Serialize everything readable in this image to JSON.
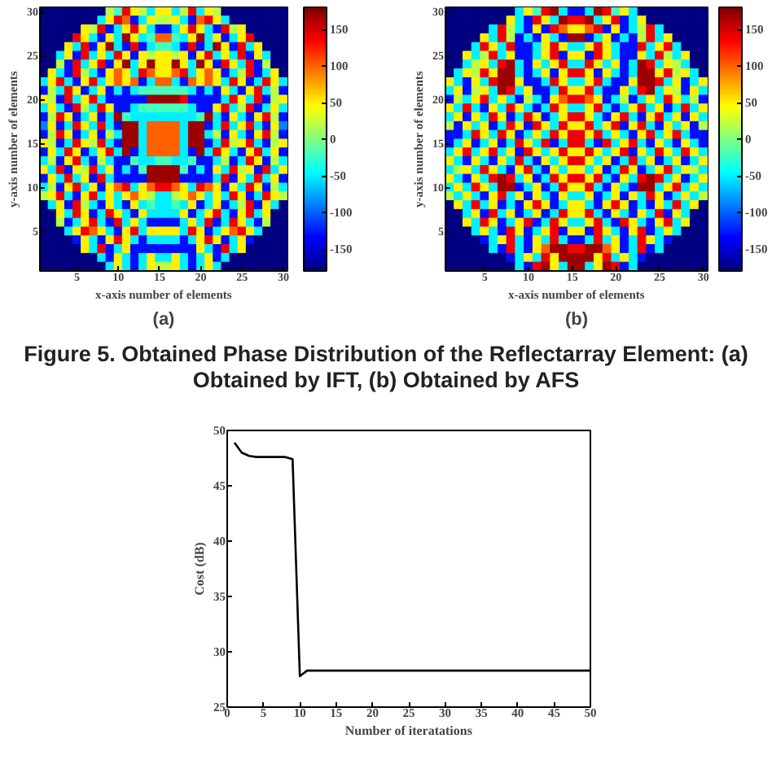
{
  "chart_data": [
    {
      "type": "heatmap",
      "title": "(a)",
      "xlabel": "x-axis number of elements",
      "ylabel": "y-axis number of elements",
      "annotations": [
        "Figure 5. Obtained Phase Distribution of the Reflectarray Element: (a) Obtained by IFT, (b) Obtained by AFS"
      ],
      "categories": [
        null,
        null,
        null,
        null,
        "5",
        null,
        null,
        null,
        null,
        "10",
        null,
        null,
        null,
        null,
        "15",
        null,
        null,
        null,
        null,
        "20",
        null,
        null,
        null,
        null,
        "25",
        null,
        null,
        null,
        null,
        "30"
      ],
      "y_categories": [
        "30",
        null,
        null,
        null,
        null,
        "25",
        null,
        null,
        null,
        null,
        "20",
        null,
        null,
        null,
        null,
        "15",
        null,
        null,
        null,
        null,
        "10",
        null,
        null,
        null,
        null,
        "5",
        null,
        null,
        null,
        null
      ],
      "clim": [
        -180,
        180
      ],
      "cticks": [
        -150,
        -100,
        -50,
        0,
        50,
        100,
        150
      ],
      "cells": [
        [
          -180,
          -180,
          -180,
          -180,
          -180,
          -180,
          -180,
          -180,
          20,
          -20,
          140,
          50,
          20,
          -50,
          50,
          50,
          -50,
          20,
          140,
          -50,
          50,
          20,
          -180,
          -180,
          -180,
          -180,
          -180,
          -180,
          -180,
          -180
        ],
        [
          -180,
          -180,
          -180,
          -180,
          -180,
          -180,
          -180,
          -50,
          50,
          140,
          100,
          -130,
          -50,
          50,
          20,
          20,
          50,
          -50,
          -130,
          100,
          140,
          50,
          -50,
          -180,
          -180,
          -180,
          -180,
          -180,
          -180,
          -180
        ],
        [
          -180,
          -180,
          -180,
          -180,
          -180,
          50,
          20,
          140,
          -130,
          -50,
          50,
          140,
          50,
          -50,
          -130,
          -130,
          -50,
          50,
          140,
          50,
          -50,
          -130,
          140,
          20,
          50,
          -180,
          -180,
          -180,
          -180,
          -180
        ],
        [
          -180,
          -180,
          -180,
          -180,
          140,
          50,
          -50,
          -130,
          50,
          -50,
          170,
          50,
          -50,
          -20,
          100,
          100,
          -20,
          -50,
          50,
          170,
          -50,
          50,
          -130,
          -50,
          50,
          140,
          -180,
          -180,
          -180,
          -180
        ],
        [
          -180,
          -180,
          -180,
          50,
          -50,
          140,
          -130,
          50,
          170,
          -50,
          -130,
          140,
          -130,
          -50,
          -20,
          -20,
          -50,
          -130,
          140,
          -130,
          -50,
          170,
          50,
          -130,
          140,
          -50,
          50,
          -180,
          -180,
          -180
        ],
        [
          -180,
          -180,
          -50,
          50,
          -130,
          140,
          -50,
          50,
          -50,
          140,
          50,
          -130,
          50,
          20,
          50,
          50,
          20,
          50,
          -130,
          50,
          140,
          -50,
          50,
          -50,
          140,
          -130,
          50,
          -50,
          -180,
          -180
        ],
        [
          -180,
          -180,
          20,
          -130,
          140,
          -50,
          50,
          140,
          -130,
          50,
          170,
          -50,
          50,
          170,
          50,
          50,
          170,
          50,
          -50,
          170,
          50,
          -130,
          140,
          50,
          -50,
          140,
          -130,
          20,
          -180,
          -180
        ],
        [
          -180,
          50,
          -50,
          -130,
          140,
          20,
          -50,
          -130,
          50,
          100,
          50,
          -50,
          140,
          100,
          50,
          50,
          100,
          140,
          -50,
          50,
          100,
          50,
          -130,
          -50,
          20,
          140,
          -130,
          -50,
          50,
          -180
        ],
        [
          -50,
          50,
          140,
          -50,
          -130,
          50,
          140,
          -50,
          50,
          100,
          50,
          100,
          -130,
          -50,
          100,
          100,
          -50,
          -130,
          100,
          50,
          100,
          50,
          -50,
          140,
          50,
          -130,
          -50,
          140,
          50,
          -50
        ],
        [
          -130,
          20,
          -50,
          140,
          50,
          -130,
          -50,
          50,
          -130,
          -50,
          -130,
          -50,
          -20,
          -20,
          -20,
          -20,
          -20,
          -20,
          -50,
          -130,
          -50,
          -130,
          50,
          -50,
          -130,
          50,
          140,
          -50,
          20,
          -130
        ],
        [
          50,
          20,
          -130,
          140,
          -50,
          50,
          140,
          -50,
          -130,
          -130,
          -130,
          -130,
          -130,
          170,
          170,
          170,
          170,
          140,
          -130,
          -130,
          -130,
          -130,
          -50,
          140,
          50,
          -50,
          140,
          -130,
          20,
          50
        ],
        [
          -50,
          50,
          -50,
          -130,
          140,
          20,
          -50,
          140,
          50,
          -130,
          -130,
          -50,
          -20,
          -20,
          -20,
          -20,
          -20,
          -20,
          -50,
          -130,
          -130,
          50,
          140,
          -50,
          20,
          140,
          -130,
          -50,
          50,
          -50
        ],
        [
          -130,
          20,
          140,
          50,
          -130,
          -50,
          50,
          -130,
          -50,
          170,
          -20,
          -50,
          -50,
          -50,
          -50,
          -50,
          -50,
          -50,
          -50,
          -20,
          170,
          -50,
          -130,
          50,
          -50,
          -130,
          50,
          140,
          20,
          -130
        ],
        [
          -90,
          50,
          -130,
          -50,
          140,
          50,
          -50,
          140,
          -50,
          -130,
          170,
          170,
          -50,
          100,
          100,
          100,
          100,
          -50,
          170,
          170,
          -130,
          -50,
          140,
          -50,
          50,
          140,
          -50,
          -130,
          50,
          -90
        ],
        [
          -130,
          20,
          140,
          50,
          -130,
          -50,
          50,
          -130,
          20,
          -50,
          170,
          170,
          -50,
          100,
          100,
          100,
          100,
          -50,
          170,
          170,
          -50,
          20,
          -130,
          50,
          -50,
          -130,
          50,
          140,
          20,
          -130
        ],
        [
          50,
          20,
          -130,
          -50,
          140,
          50,
          20,
          140,
          -50,
          -130,
          170,
          170,
          -50,
          100,
          100,
          100,
          100,
          -50,
          170,
          170,
          -130,
          -50,
          140,
          20,
          50,
          140,
          -50,
          -130,
          20,
          50
        ],
        [
          -130,
          50,
          -50,
          140,
          50,
          -130,
          -50,
          50,
          140,
          -50,
          170,
          -130,
          -50,
          100,
          100,
          100,
          100,
          -50,
          -130,
          170,
          -50,
          140,
          50,
          -50,
          -130,
          50,
          140,
          -50,
          50,
          -130
        ],
        [
          -50,
          20,
          -130,
          50,
          140,
          -50,
          -130,
          20,
          -50,
          -130,
          -130,
          -20,
          -50,
          -50,
          -20,
          -20,
          -50,
          -50,
          -20,
          -130,
          -130,
          -50,
          20,
          -130,
          -50,
          140,
          50,
          -130,
          20,
          -50
        ],
        [
          50,
          -50,
          140,
          -130,
          50,
          20,
          140,
          -50,
          50,
          -130,
          -50,
          -130,
          -20,
          170,
          170,
          170,
          170,
          -20,
          -130,
          -50,
          -130,
          50,
          -50,
          140,
          20,
          50,
          -130,
          140,
          -50,
          50
        ],
        [
          -130,
          50,
          -50,
          140,
          -50,
          50,
          -130,
          140,
          -50,
          -130,
          -130,
          -130,
          -130,
          170,
          170,
          170,
          170,
          -130,
          -130,
          -130,
          -130,
          -50,
          140,
          -130,
          50,
          -50,
          140,
          -50,
          50,
          -130
        ],
        [
          -50,
          20,
          -130,
          50,
          140,
          -50,
          50,
          -130,
          50,
          100,
          140,
          -50,
          50,
          100,
          140,
          140,
          100,
          50,
          -50,
          140,
          100,
          50,
          -130,
          50,
          -50,
          140,
          50,
          -130,
          20,
          -50
        ],
        [
          20,
          50,
          140,
          -50,
          -130,
          50,
          140,
          -50,
          50,
          -50,
          50,
          100,
          50,
          20,
          -50,
          -50,
          20,
          50,
          100,
          50,
          -50,
          50,
          -50,
          140,
          50,
          -130,
          -50,
          140,
          50,
          20
        ],
        [
          -180,
          -50,
          50,
          -130,
          140,
          20,
          -50,
          -130,
          50,
          -50,
          -130,
          50,
          -50,
          -20,
          -50,
          -50,
          -20,
          -50,
          50,
          -130,
          -50,
          50,
          -130,
          -50,
          20,
          140,
          -130,
          50,
          -50,
          -180
        ],
        [
          -180,
          -180,
          50,
          -50,
          140,
          50,
          -130,
          -50,
          140,
          50,
          -50,
          -130,
          50,
          -50,
          -50,
          -50,
          -50,
          50,
          -130,
          -50,
          50,
          140,
          -50,
          -130,
          50,
          140,
          -50,
          50,
          -180,
          -180
        ],
        [
          -180,
          -180,
          20,
          -130,
          -50,
          50,
          140,
          -50,
          -130,
          140,
          -50,
          50,
          -50,
          -130,
          -130,
          -130,
          -130,
          -50,
          50,
          -50,
          140,
          -130,
          -50,
          140,
          50,
          -50,
          -130,
          20,
          -180,
          -180
        ],
        [
          -180,
          -180,
          -180,
          -50,
          50,
          140,
          100,
          50,
          -50,
          -130,
          50,
          140,
          -50,
          50,
          50,
          50,
          50,
          -50,
          140,
          50,
          -130,
          -50,
          50,
          100,
          140,
          50,
          -50,
          -180,
          -180,
          -180
        ],
        [
          -180,
          -180,
          -180,
          -180,
          -130,
          50,
          -50,
          -130,
          50,
          140,
          50,
          -50,
          -130,
          -50,
          -50,
          -50,
          -50,
          -130,
          -50,
          50,
          140,
          50,
          -130,
          -50,
          50,
          -130,
          -180,
          -180,
          -180,
          -180
        ],
        [
          -180,
          -180,
          -180,
          -180,
          -180,
          50,
          -50,
          140,
          -130,
          -50,
          50,
          -130,
          -130,
          -130,
          -130,
          -130,
          -130,
          -130,
          -130,
          50,
          -50,
          -130,
          140,
          -50,
          50,
          -180,
          -180,
          -180,
          -180,
          -180
        ],
        [
          -180,
          -180,
          -180,
          -180,
          -180,
          -180,
          -180,
          -50,
          -130,
          50,
          -50,
          -130,
          -50,
          50,
          -50,
          -50,
          50,
          -50,
          -130,
          -50,
          50,
          -130,
          -50,
          -180,
          -180,
          -180,
          -180,
          -180,
          -180,
          -180
        ],
        [
          -180,
          -180,
          -180,
          -180,
          -180,
          -180,
          -180,
          -180,
          -50,
          50,
          -50,
          -130,
          -50,
          50,
          20,
          20,
          50,
          -50,
          -130,
          -50,
          50,
          -50,
          -180,
          -180,
          -180,
          -180,
          -180,
          -180,
          -180,
          -180
        ]
      ]
    },
    {
      "type": "heatmap",
      "title": "(b)",
      "xlabel": "x-axis number of elements",
      "ylabel": "y-axis number of elements",
      "categories": [
        null,
        null,
        null,
        null,
        "5",
        null,
        null,
        null,
        null,
        "10",
        null,
        null,
        null,
        null,
        "15",
        null,
        null,
        null,
        null,
        "20",
        null,
        null,
        null,
        null,
        "25",
        null,
        null,
        null,
        null,
        "30"
      ],
      "y_categories": [
        "30",
        null,
        null,
        null,
        null,
        "25",
        null,
        null,
        null,
        null,
        "20",
        null,
        null,
        null,
        null,
        "15",
        null,
        null,
        null,
        null,
        "10",
        null,
        null,
        null,
        null,
        "5",
        null,
        null,
        null,
        null
      ],
      "clim": [
        -180,
        180
      ],
      "cticks": [
        -150,
        -100,
        -50,
        0,
        50,
        100,
        150
      ],
      "cells": [
        [
          -180,
          -180,
          -180,
          -180,
          -180,
          -180,
          -180,
          -180,
          -50,
          50,
          -20,
          140,
          170,
          -50,
          -130,
          -130,
          -50,
          170,
          140,
          -20,
          50,
          -50,
          -180,
          -180,
          -180,
          -180,
          -180,
          -180,
          -180,
          -180
        ],
        [
          -180,
          -180,
          -180,
          -180,
          -180,
          -180,
          -180,
          50,
          -50,
          -130,
          140,
          50,
          -50,
          170,
          140,
          140,
          170,
          -50,
          50,
          140,
          -130,
          -50,
          50,
          -180,
          -180,
          -180,
          -180,
          -180,
          -180,
          -180
        ],
        [
          -180,
          -180,
          -180,
          -180,
          -180,
          -50,
          140,
          20,
          -50,
          -130,
          50,
          -130,
          140,
          100,
          50,
          50,
          100,
          140,
          -130,
          50,
          -130,
          -50,
          20,
          140,
          -50,
          -180,
          -180,
          -180,
          -180,
          -180
        ],
        [
          -180,
          -180,
          -180,
          -180,
          50,
          -50,
          140,
          20,
          -130,
          -50,
          -130,
          50,
          -50,
          -130,
          170,
          170,
          -130,
          -50,
          50,
          -130,
          -50,
          -130,
          20,
          140,
          -50,
          50,
          -180,
          -180,
          -180,
          -180
        ],
        [
          -180,
          -180,
          -180,
          -50,
          140,
          50,
          -50,
          140,
          -130,
          -130,
          -50,
          50,
          140,
          50,
          -50,
          -50,
          50,
          140,
          50,
          -50,
          -130,
          -130,
          140,
          -50,
          50,
          140,
          -50,
          -180,
          -180,
          -180
        ],
        [
          -180,
          -180,
          50,
          -50,
          20,
          140,
          -50,
          50,
          -130,
          -130,
          -50,
          50,
          140,
          -130,
          50,
          50,
          -130,
          140,
          50,
          -50,
          -130,
          -130,
          50,
          -50,
          140,
          20,
          -50,
          50,
          -180,
          -180
        ],
        [
          -180,
          -180,
          -50,
          20,
          50,
          -50,
          140,
          170,
          -50,
          -130,
          50,
          -50,
          50,
          140,
          -50,
          -50,
          140,
          50,
          -50,
          50,
          -130,
          -50,
          170,
          140,
          -50,
          50,
          20,
          -50,
          -180,
          -180
        ],
        [
          -180,
          -50,
          50,
          20,
          140,
          50,
          170,
          170,
          -50,
          -130,
          -50,
          50,
          -130,
          50,
          140,
          140,
          50,
          -130,
          50,
          -50,
          -130,
          -50,
          170,
          170,
          50,
          140,
          20,
          50,
          -50,
          -180
        ],
        [
          50,
          -50,
          -130,
          50,
          -50,
          140,
          170,
          170,
          50,
          -130,
          -130,
          -50,
          140,
          50,
          -50,
          -50,
          50,
          140,
          -50,
          -130,
          -130,
          50,
          170,
          170,
          140,
          -50,
          50,
          -130,
          -50,
          50
        ],
        [
          -50,
          50,
          -130,
          20,
          50,
          -50,
          170,
          140,
          -50,
          50,
          -130,
          -130,
          -50,
          140,
          50,
          50,
          140,
          -50,
          -130,
          -130,
          50,
          -50,
          140,
          170,
          -50,
          50,
          20,
          -130,
          50,
          -50
        ],
        [
          -130,
          20,
          -50,
          50,
          140,
          -50,
          50,
          -50,
          -130,
          20,
          -50,
          -130,
          50,
          100,
          140,
          140,
          100,
          50,
          -130,
          -50,
          20,
          -130,
          -50,
          50,
          -50,
          140,
          50,
          -50,
          20,
          -130
        ],
        [
          50,
          -50,
          140,
          -50,
          -130,
          50,
          -50,
          140,
          50,
          -50,
          -130,
          -50,
          140,
          50,
          -50,
          -50,
          50,
          140,
          -50,
          -130,
          -50,
          50,
          140,
          -50,
          50,
          -130,
          -50,
          140,
          -50,
          50
        ],
        [
          -50,
          50,
          -130,
          50,
          -50,
          140,
          50,
          -130,
          -50,
          140,
          50,
          -130,
          -50,
          50,
          140,
          140,
          50,
          -50,
          -130,
          50,
          140,
          -50,
          -130,
          50,
          140,
          -50,
          50,
          -130,
          50,
          -50
        ],
        [
          20,
          -130,
          50,
          -50,
          50,
          -130,
          -50,
          140,
          50,
          -130,
          140,
          50,
          -50,
          140,
          50,
          50,
          140,
          -50,
          50,
          140,
          -130,
          50,
          140,
          -50,
          -130,
          50,
          -50,
          50,
          -130,
          20
        ],
        [
          -130,
          -130,
          -50,
          140,
          50,
          -50,
          140,
          50,
          -130,
          -50,
          50,
          -50,
          140,
          50,
          140,
          140,
          50,
          140,
          -50,
          50,
          -50,
          -130,
          50,
          140,
          -50,
          50,
          140,
          -50,
          -130,
          -130
        ],
        [
          -130,
          -50,
          50,
          -130,
          -50,
          50,
          -130,
          -50,
          140,
          50,
          -50,
          140,
          -130,
          -50,
          140,
          140,
          -50,
          -130,
          140,
          -50,
          50,
          140,
          -50,
          -130,
          50,
          -50,
          -130,
          50,
          -50,
          -130
        ],
        [
          -50,
          50,
          140,
          -50,
          50,
          140,
          -50,
          50,
          -130,
          140,
          50,
          -50,
          50,
          140,
          50,
          50,
          140,
          50,
          -50,
          50,
          140,
          -130,
          50,
          -50,
          140,
          50,
          -50,
          140,
          50,
          -50
        ],
        [
          50,
          -50,
          -130,
          50,
          -50,
          -130,
          50,
          -50,
          140,
          -50,
          -130,
          50,
          -50,
          50,
          140,
          140,
          50,
          -50,
          50,
          -130,
          -50,
          140,
          -50,
          50,
          -130,
          -50,
          50,
          -130,
          -50,
          50
        ],
        [
          -50,
          20,
          50,
          -50,
          140,
          50,
          -50,
          -130,
          50,
          140,
          -50,
          -130,
          50,
          -50,
          50,
          50,
          -50,
          50,
          -130,
          -50,
          140,
          50,
          -130,
          -50,
          50,
          140,
          -50,
          50,
          20,
          -50
        ],
        [
          50,
          -50,
          -130,
          50,
          -50,
          140,
          170,
          140,
          -50,
          50,
          -130,
          -50,
          140,
          50,
          140,
          140,
          50,
          140,
          -50,
          -130,
          50,
          -50,
          140,
          170,
          140,
          -50,
          50,
          -130,
          -50,
          50
        ],
        [
          -50,
          50,
          -50,
          140,
          50,
          -50,
          170,
          170,
          -130,
          -50,
          50,
          -130,
          -50,
          140,
          50,
          50,
          140,
          -50,
          -130,
          50,
          -50,
          -130,
          170,
          170,
          -50,
          50,
          140,
          -50,
          50,
          -50
        ],
        [
          20,
          -50,
          50,
          -50,
          -130,
          50,
          140,
          -50,
          50,
          -130,
          50,
          -50,
          -130,
          50,
          -50,
          -50,
          50,
          -130,
          -50,
          50,
          -130,
          50,
          -50,
          140,
          50,
          -130,
          -50,
          50,
          -50,
          20
        ],
        [
          -180,
          50,
          -50,
          140,
          -50,
          50,
          -130,
          -50,
          -130,
          50,
          140,
          50,
          -130,
          -50,
          50,
          50,
          -50,
          -130,
          50,
          140,
          50,
          -130,
          -50,
          -130,
          50,
          -50,
          140,
          -50,
          50,
          -180
        ],
        [
          -180,
          -180,
          -50,
          50,
          -130,
          140,
          -50,
          50,
          -130,
          -50,
          50,
          -130,
          -50,
          140,
          50,
          50,
          140,
          -50,
          -130,
          50,
          -50,
          -130,
          50,
          -50,
          140,
          -130,
          50,
          -50,
          -180,
          -180
        ],
        [
          -180,
          -180,
          50,
          -50,
          140,
          50,
          -130,
          -50,
          50,
          140,
          -130,
          -50,
          140,
          50,
          -50,
          -50,
          50,
          140,
          -50,
          -130,
          140,
          50,
          -50,
          -130,
          50,
          140,
          -50,
          50,
          -180,
          -180
        ],
        [
          -180,
          -180,
          -180,
          -50,
          50,
          -50,
          -130,
          140,
          50,
          -130,
          -50,
          50,
          140,
          -130,
          50,
          50,
          -130,
          140,
          50,
          -50,
          -130,
          50,
          140,
          -130,
          -50,
          50,
          -50,
          -180,
          -180,
          -180
        ],
        [
          -180,
          -180,
          -180,
          -180,
          -130,
          -50,
          50,
          140,
          -50,
          -130,
          50,
          -50,
          140,
          -50,
          -130,
          -130,
          -50,
          140,
          -50,
          50,
          -130,
          -50,
          140,
          50,
          -50,
          -130,
          -180,
          -180,
          -180,
          -180
        ],
        [
          -180,
          -180,
          -180,
          -180,
          -180,
          -50,
          -130,
          140,
          -50,
          -130,
          50,
          100,
          170,
          170,
          140,
          140,
          170,
          170,
          100,
          50,
          -130,
          -50,
          140,
          -130,
          -50,
          -180,
          -180,
          -180,
          -180,
          -180
        ],
        [
          -180,
          -180,
          -180,
          -180,
          -180,
          -180,
          -180,
          -130,
          -50,
          50,
          -50,
          140,
          50,
          170,
          170,
          170,
          170,
          50,
          140,
          -50,
          50,
          -50,
          -130,
          -180,
          -180,
          -180,
          -180,
          -180,
          -180,
          -180
        ],
        [
          -180,
          -180,
          -180,
          -180,
          -180,
          -180,
          -180,
          -180,
          -50,
          -130,
          140,
          170,
          50,
          -50,
          170,
          170,
          -50,
          50,
          170,
          140,
          -130,
          -50,
          -180,
          -180,
          -180,
          -180,
          -180,
          -180,
          -180,
          -180
        ]
      ]
    },
    {
      "type": "line",
      "xlabel": "Number of iteratations",
      "ylabel": "Cost (dB)",
      "x": [
        1,
        2,
        3,
        4,
        5,
        6,
        7,
        8,
        9,
        10,
        11,
        12,
        13,
        14,
        15,
        16,
        17,
        18,
        19,
        20,
        21,
        22,
        23,
        24,
        25,
        26,
        27,
        28,
        29,
        30,
        31,
        32,
        33,
        34,
        35,
        36,
        37,
        38,
        39,
        40,
        41,
        42,
        43,
        44,
        45,
        46,
        47,
        48,
        49,
        50
      ],
      "series": [
        {
          "color": "#000000",
          "values": [
            48.9,
            48.0,
            47.7,
            47.6,
            47.6,
            47.6,
            47.6,
            47.6,
            47.4,
            27.8,
            28.3,
            28.3,
            28.3,
            28.3,
            28.3,
            28.3,
            28.3,
            28.3,
            28.3,
            28.3,
            28.3,
            28.3,
            28.3,
            28.3,
            28.3,
            28.3,
            28.3,
            28.3,
            28.3,
            28.3,
            28.3,
            28.3,
            28.3,
            28.3,
            28.3,
            28.3,
            28.3,
            28.3,
            28.3,
            28.3,
            28.3,
            28.3,
            28.3,
            28.3,
            28.3,
            28.3,
            28.3,
            28.3,
            28.3,
            28.3
          ]
        }
      ],
      "xlim": [
        0,
        50
      ],
      "ylim": [
        25,
        50
      ],
      "xticks": [
        0,
        5,
        10,
        15,
        20,
        25,
        30,
        35,
        40,
        45,
        50
      ],
      "yticks": [
        25,
        30,
        35,
        40,
        45,
        50
      ]
    }
  ]
}
